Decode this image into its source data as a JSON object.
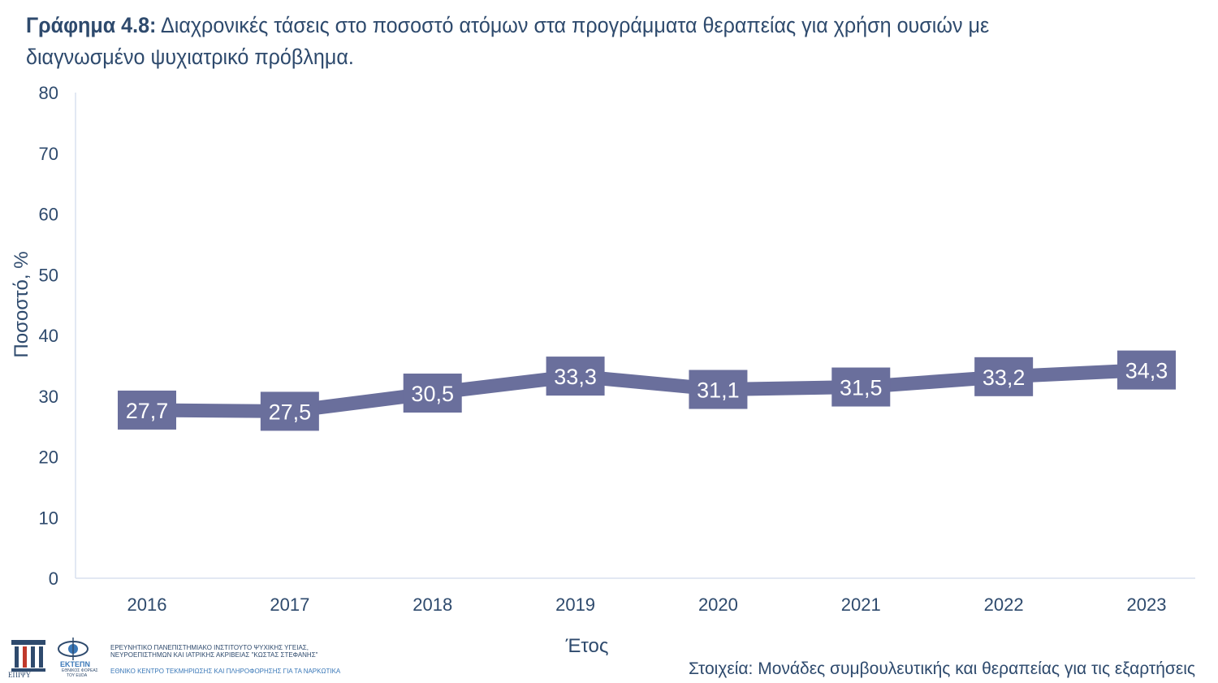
{
  "title": {
    "prefix": "Γράφημα 4.8:",
    "text": " Διαχρονικές τάσεις στο ποσοστό ατόμων στα προγράμματα θεραπείας για χρήση ουσιών με διαγνωσμένο ψυχιατρικό πρόβλημα."
  },
  "source": "Στοιχεία: Μονάδες συμβουλευτικής και θεραπείας για τις εξαρτήσεις",
  "logos": {
    "left_caption": "ΕΠΙΨΥ",
    "right_caption": "ΕΚΤΕΠΝ",
    "right_sub1": "ΕΘΝΙΚΟΣ ΦΟΡΕΑΣ",
    "right_sub2": "ΤΟΥ EUDA",
    "line1": "ΕΡΕΥΝΗΤΙΚΟ ΠΑΝΕΠΙΣΤΗΜΙΑΚΟ ΙΝΣΤΙΤΟΥΤΟ ΨΥΧΙΚΗΣ ΥΓΕΙΑΣ,",
    "line2": "ΝΕΥΡΟΕΠΙΣΤΗΜΩΝ ΚΑΙ ΙΑΤΡΙΚΗΣ ΑΚΡΙΒΕΙΑΣ \"ΚΩΣΤΑΣ ΣΤΕΦΑΝΗΣ\"",
    "line3": "ΕΘΝΙΚΟ ΚΕΝΤΡΟ ΤΕΚΜΗΡΙΩΣΗΣ ΚΑΙ ΠΛΗΡΟΦΟΡΗΣΗΣ ΓΙΑ ΤΑ ΝΑΡΚΩΤΙΚΑ"
  },
  "chart_data": {
    "type": "line",
    "categories": [
      "2016",
      "2017",
      "2018",
      "2019",
      "2020",
      "2021",
      "2022",
      "2023"
    ],
    "series": [
      {
        "values": [
          27.7,
          27.5,
          30.5,
          33.3,
          31.1,
          31.5,
          33.2,
          34.3
        ]
      }
    ],
    "data_labels": [
      "27,7",
      "27,5",
      "30,5",
      "33,3",
      "31,1",
      "31,5",
      "33,2",
      "34,3"
    ],
    "xlabel": "Έτος",
    "ylabel": "Ποσοστό, %",
    "ylim": [
      0,
      80
    ],
    "yticks": [
      "0",
      "10",
      "20",
      "30",
      "40",
      "50",
      "60",
      "70",
      "80"
    ],
    "grid": false,
    "line_color": "#6a6f9c",
    "text_color": "#2e4a6d"
  }
}
